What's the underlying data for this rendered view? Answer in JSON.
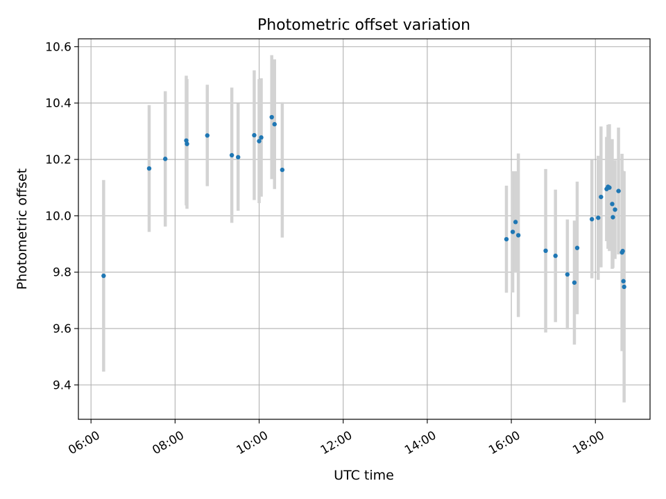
{
  "chart_data": {
    "type": "scatter",
    "title": "Photometric offset variation",
    "xlabel": "UTC time",
    "ylabel": "Photometric offset",
    "x_is_time": true,
    "xlim": [
      "05:42",
      "19:18"
    ],
    "ylim": [
      9.278,
      10.628
    ],
    "x_ticks": [
      "06:00",
      "08:00",
      "10:00",
      "12:00",
      "14:00",
      "16:00",
      "18:00"
    ],
    "y_ticks": [
      9.4,
      9.6,
      9.8,
      10.0,
      10.2,
      10.4,
      10.6
    ],
    "grid": true,
    "point_color": "#1f77b4",
    "errorbar_color": "#d3d3d3",
    "series": [
      {
        "points": [
          {
            "t": "06:18",
            "y": 9.787,
            "err": 0.34
          },
          {
            "t": "07:23",
            "y": 10.168,
            "err": 0.225
          },
          {
            "t": "07:46",
            "y": 10.202,
            "err": 0.24
          },
          {
            "t": "08:16",
            "y": 10.267,
            "err": 0.23
          },
          {
            "t": "08:17",
            "y": 10.255,
            "err": 0.23
          },
          {
            "t": "08:46",
            "y": 10.285,
            "err": 0.18
          },
          {
            "t": "09:21",
            "y": 10.215,
            "err": 0.24
          },
          {
            "t": "09:30",
            "y": 10.208,
            "err": 0.19
          },
          {
            "t": "09:53",
            "y": 10.286,
            "err": 0.23
          },
          {
            "t": "10:00",
            "y": 10.265,
            "err": 0.22
          },
          {
            "t": "10:03",
            "y": 10.278,
            "err": 0.21
          },
          {
            "t": "10:18",
            "y": 10.35,
            "err": 0.22
          },
          {
            "t": "10:22",
            "y": 10.325,
            "err": 0.23
          },
          {
            "t": "10:33",
            "y": 10.163,
            "err": 0.24
          },
          {
            "t": "15:53",
            "y": 9.917,
            "err": 0.19
          },
          {
            "t": "16:02",
            "y": 9.943,
            "err": 0.215
          },
          {
            "t": "16:06",
            "y": 9.978,
            "err": 0.18
          },
          {
            "t": "16:10",
            "y": 9.931,
            "err": 0.29
          },
          {
            "t": "16:49",
            "y": 9.876,
            "err": 0.29
          },
          {
            "t": "17:03",
            "y": 9.858,
            "err": 0.235
          },
          {
            "t": "17:20",
            "y": 9.792,
            "err": 0.195
          },
          {
            "t": "17:30",
            "y": 9.763,
            "err": 0.22
          },
          {
            "t": "17:34",
            "y": 9.886,
            "err": 0.235
          },
          {
            "t": "17:55",
            "y": 9.988,
            "err": 0.21
          },
          {
            "t": "18:04",
            "y": 9.993,
            "err": 0.22
          },
          {
            "t": "18:08",
            "y": 10.067,
            "err": 0.25
          },
          {
            "t": "18:16",
            "y": 10.095,
            "err": 0.185
          },
          {
            "t": "18:18",
            "y": 10.103,
            "err": 0.22
          },
          {
            "t": "18:20",
            "y": 10.1,
            "err": 0.225
          },
          {
            "t": "18:24",
            "y": 10.042,
            "err": 0.23
          },
          {
            "t": "18:25",
            "y": 9.995,
            "err": 0.18
          },
          {
            "t": "18:28",
            "y": 10.022,
            "err": 0.175
          },
          {
            "t": "18:33",
            "y": 10.088,
            "err": 0.225
          },
          {
            "t": "18:38",
            "y": 9.87,
            "err": 0.35
          },
          {
            "t": "18:39",
            "y": 9.875,
            "err": 0.285
          },
          {
            "t": "18:40",
            "y": 9.768,
            "err": 0.225
          },
          {
            "t": "18:41",
            "y": 9.748,
            "err": 0.41
          }
        ]
      }
    ]
  }
}
